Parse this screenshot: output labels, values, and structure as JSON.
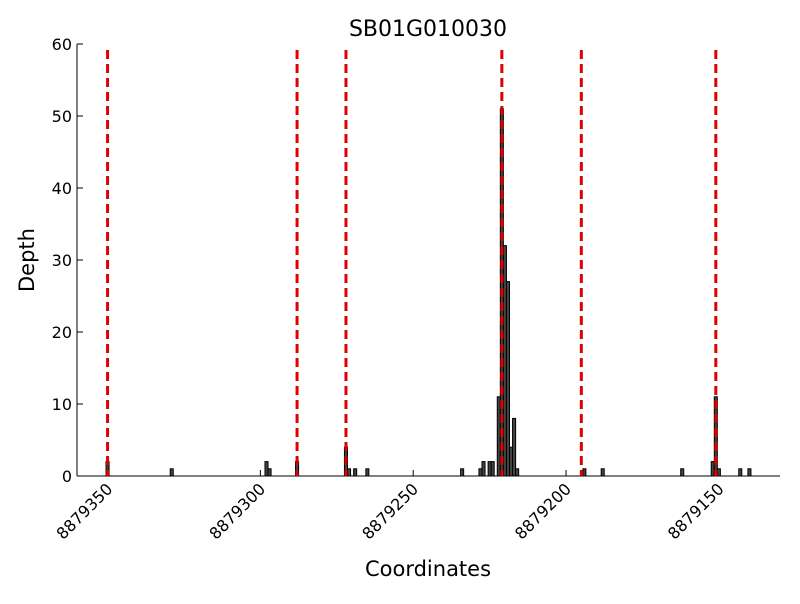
{
  "chart_data": {
    "type": "bar",
    "title": "SB01G010030",
    "x_label": "Coordinates",
    "y_label": "Depth",
    "x": [
      8879350,
      8879329,
      8879298,
      8879297,
      8879288,
      8879272,
      8879271,
      8879269,
      8879265,
      8879234,
      8879228,
      8879227,
      8879225,
      8879224,
      8879222,
      8879221,
      8879220,
      8879219,
      8879218,
      8879217,
      8879216,
      8879194,
      8879188,
      8879162,
      8879152,
      8879151,
      8879150,
      8879143,
      8879140
    ],
    "values": [
      2,
      1,
      2,
      1,
      2,
      4,
      1,
      1,
      1,
      1,
      1,
      2,
      2,
      2,
      11,
      51,
      32,
      27,
      4,
      8,
      1,
      1,
      1,
      1,
      2,
      11,
      1,
      1,
      1
    ],
    "color": "#444444",
    "vlines": [
      8879350,
      8879288,
      8879272,
      8879221,
      8879195,
      8879151
    ],
    "vline_color": "#e00000",
    "xlim": [
      8879360,
      8879130
    ],
    "xticks": [
      8879350,
      8879300,
      8879250,
      8879200,
      8879150
    ],
    "ylim": [
      0,
      60
    ],
    "yticks": [
      0,
      10,
      20,
      30,
      40,
      50,
      60
    ]
  }
}
